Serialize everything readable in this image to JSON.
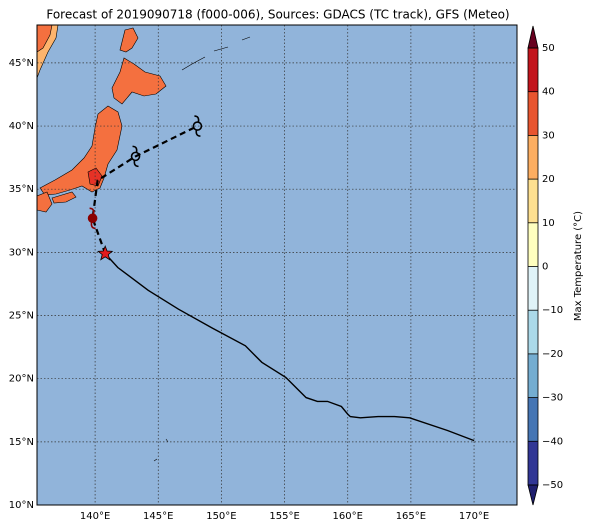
{
  "title": "Forecast of 2019090718 (f000-006), Sources: GDACS (TC track), GFS (Meteo)",
  "map": {
    "lonlim": [
      135.4,
      173.4
    ],
    "latlim": [
      10,
      48
    ],
    "grid": true,
    "lonticks": [
      {
        "value": 140,
        "label": "140°E"
      },
      {
        "value": 145,
        "label": "145°E"
      },
      {
        "value": 150,
        "label": "150°E"
      },
      {
        "value": 155,
        "label": "155°E"
      },
      {
        "value": 160,
        "label": "160°E"
      },
      {
        "value": 165,
        "label": "165°E"
      },
      {
        "value": 170,
        "label": "170°E"
      }
    ],
    "latticks": [
      {
        "value": 10,
        "label": "10°N"
      },
      {
        "value": 15,
        "label": "15°N"
      },
      {
        "value": 20,
        "label": "20°N"
      },
      {
        "value": 25,
        "label": "25°N"
      },
      {
        "value": 30,
        "label": "30°N"
      },
      {
        "value": 35,
        "label": "35°N"
      },
      {
        "value": 40,
        "label": "40°N"
      },
      {
        "value": 45,
        "label": "45°N"
      }
    ],
    "track": {
      "color": "#000000",
      "lon": [
        170.0,
        167.9,
        164.9,
        163.7,
        162.4,
        161.0,
        160.2,
        160.0,
        159.5,
        158.4,
        157.6,
        156.7,
        155.1,
        153.2,
        151.9,
        149.3,
        146.6,
        144.2,
        141.8,
        140.8
      ],
      "lat": [
        15.1,
        15.9,
        16.9,
        17.0,
        17.0,
        16.9,
        17.0,
        17.2,
        17.8,
        18.2,
        18.2,
        18.5,
        20.1,
        21.3,
        22.6,
        24.0,
        25.5,
        27.0,
        28.8,
        29.9
      ]
    },
    "forecast": {
      "color": "#000000",
      "lon": [
        140.8,
        139.8,
        140.2,
        143.2,
        148.1
      ],
      "lat": [
        29.9,
        32.7,
        35.7,
        37.6,
        40.0
      ],
      "symbol_colors": [
        "#8b0000",
        "#000000",
        "#000000"
      ]
    },
    "current": {
      "lon": 140.8,
      "lat": 29.9,
      "color": "#e31a1c"
    }
  },
  "colorbar": {
    "label": "Max Temperature (°C)",
    "ticks": [
      {
        "value": -50,
        "label": "−50"
      },
      {
        "value": -40,
        "label": "−40"
      },
      {
        "value": -30,
        "label": "−30"
      },
      {
        "value": -20,
        "label": "−20"
      },
      {
        "value": -10,
        "label": "−10"
      },
      0,
      10,
      20,
      30,
      40,
      50
    ],
    "colors": [
      "#313695",
      "#4575b4",
      "#74add1",
      "#abd9e9",
      "#e0f3f8",
      "#ffffbf",
      "#fee090",
      "#fdae61",
      "#e8552f",
      "#c2141c"
    ],
    "under": "#1f1f6e",
    "over": "#67001f"
  }
}
